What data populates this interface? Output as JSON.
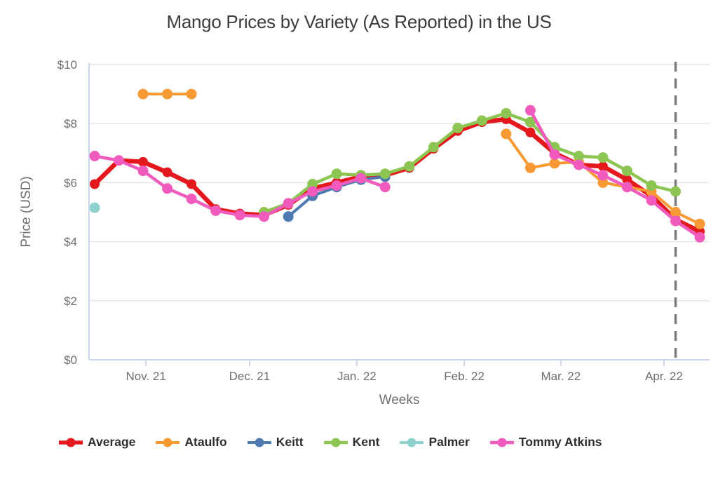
{
  "title": "Mango Prices by Variety (As Reported) in the US",
  "chart_data": {
    "type": "line",
    "title": "Mango Prices by Variety (As Reported) in the US",
    "xlabel": "Weeks",
    "ylabel": "Price (USD)",
    "ylim": [
      0,
      10
    ],
    "grid": true,
    "legend_position": "bottom",
    "y_ticks": [
      {
        "label": "$0",
        "value": 0
      },
      {
        "label": "$2",
        "value": 2
      },
      {
        "label": "$4",
        "value": 4
      },
      {
        "label": "$6",
        "value": 6
      },
      {
        "label": "$8",
        "value": 8
      },
      {
        "label": "$10",
        "value": 10
      }
    ],
    "x_ticks": [
      {
        "label": "Nov. 21",
        "week": 3.12
      },
      {
        "label": "Dec. 21",
        "week": 7.4
      },
      {
        "label": "Jan. 22",
        "week": 11.83
      },
      {
        "label": "Feb. 22",
        "week": 16.27
      },
      {
        "label": "Mar. 22",
        "week": 20.26
      },
      {
        "label": "Apr. 22",
        "week": 24.52
      }
    ],
    "reference_line": {
      "week": 25,
      "color": "#7e7e7e",
      "style": "dashed-vertical"
    },
    "colors": {
      "grid": "#e6e6e6",
      "axis": "#ccd6eb",
      "dashed_line": "#7e7e7e"
    },
    "series": [
      {
        "name": "Average",
        "color": "#e3191d",
        "line_width": 6.5,
        "marker_radius": 7,
        "points": [
          [
            1,
            5.95
          ],
          [
            2,
            6.75
          ],
          [
            3,
            6.7
          ],
          [
            4,
            6.35
          ],
          [
            5,
            5.95
          ],
          [
            6,
            5.1
          ],
          [
            7,
            4.95
          ],
          [
            8,
            4.9
          ],
          [
            9,
            5.25
          ],
          [
            10,
            5.8
          ],
          [
            11,
            6.0
          ],
          [
            12,
            6.2
          ],
          [
            13,
            6.25
          ],
          [
            14,
            6.5
          ],
          [
            15,
            7.15
          ],
          [
            16,
            7.75
          ],
          [
            17,
            8.05
          ],
          [
            18,
            8.15
          ],
          [
            19,
            7.7
          ],
          [
            20,
            7.0
          ],
          [
            21,
            6.6
          ],
          [
            22,
            6.55
          ],
          [
            23,
            6.1
          ],
          [
            24,
            5.55
          ],
          [
            25,
            4.75
          ],
          [
            26,
            4.35
          ]
        ]
      },
      {
        "name": "Ataulfo",
        "color": "#f89a33",
        "line_width": 4,
        "marker_radius": 7.5,
        "points": [
          [
            3,
            9.0
          ],
          [
            4,
            9.0
          ],
          [
            5,
            9.0
          ],
          [
            18,
            7.65
          ],
          [
            19,
            6.5
          ],
          [
            20,
            6.65
          ],
          [
            21,
            6.7
          ],
          [
            22,
            6.0
          ],
          [
            23,
            5.85
          ],
          [
            24,
            5.7
          ],
          [
            25,
            5.0
          ],
          [
            26,
            4.6
          ]
        ]
      },
      {
        "name": "Keitt",
        "color": "#4d7ab0",
        "line_width": 4,
        "marker_radius": 7.5,
        "points": [
          [
            9,
            4.85
          ],
          [
            10,
            5.55
          ],
          [
            11,
            5.85
          ],
          [
            12,
            6.1
          ],
          [
            13,
            6.2
          ]
        ]
      },
      {
        "name": "Kent",
        "color": "#8cc551",
        "line_width": 4.5,
        "marker_radius": 7.5,
        "points": [
          [
            8,
            5.0
          ],
          [
            9,
            5.3
          ],
          [
            10,
            5.95
          ],
          [
            11,
            6.3
          ],
          [
            12,
            6.25
          ],
          [
            13,
            6.3
          ],
          [
            14,
            6.55
          ],
          [
            15,
            7.2
          ],
          [
            16,
            7.85
          ],
          [
            17,
            8.1
          ],
          [
            18,
            8.35
          ],
          [
            19,
            8.05
          ],
          [
            20,
            7.2
          ],
          [
            21,
            6.9
          ],
          [
            22,
            6.85
          ],
          [
            23,
            6.4
          ],
          [
            24,
            5.9
          ],
          [
            25,
            5.7
          ]
        ]
      },
      {
        "name": "Palmer",
        "color": "#8fd1cd",
        "line_width": 4,
        "marker_radius": 7.5,
        "points": [
          [
            1,
            5.15
          ]
        ]
      },
      {
        "name": "Tommy Atkins",
        "color": "#f05bbd",
        "line_width": 4.5,
        "marker_radius": 7.5,
        "points": [
          [
            1,
            6.9
          ],
          [
            2,
            6.75
          ],
          [
            3,
            6.4
          ],
          [
            4,
            5.8
          ],
          [
            5,
            5.45
          ],
          [
            6,
            5.05
          ],
          [
            7,
            4.9
          ],
          [
            8,
            4.85
          ],
          [
            9,
            5.3
          ],
          [
            10,
            5.7
          ],
          [
            11,
            5.9
          ],
          [
            12,
            6.15
          ],
          [
            13,
            5.85
          ],
          [
            19,
            8.45
          ],
          [
            20,
            6.95
          ],
          [
            21,
            6.6
          ],
          [
            22,
            6.25
          ],
          [
            23,
            5.85
          ],
          [
            24,
            5.4
          ],
          [
            25,
            4.7
          ],
          [
            26,
            4.15
          ]
        ]
      }
    ]
  }
}
